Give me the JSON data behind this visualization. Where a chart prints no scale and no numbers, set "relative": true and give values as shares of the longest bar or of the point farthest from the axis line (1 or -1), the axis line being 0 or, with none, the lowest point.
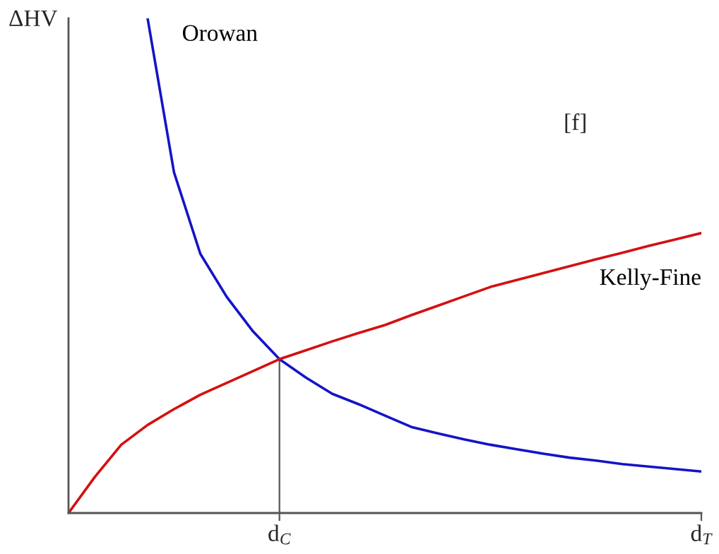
{
  "chart_data": {
    "type": "line",
    "relative": true,
    "ylabel": "ΔHV",
    "line_style": "solid",
    "tick_labels": "x",
    "categories": [
      null,
      null,
      null,
      null,
      null,
      null,
      null,
      null,
      "d$_{C}$",
      null,
      null,
      null,
      null,
      null,
      null,
      null,
      null,
      null,
      null,
      null,
      null,
      null,
      null,
      null,
      "d$_{T}$"
    ],
    "series": [
      {
        "name": "Orowan",
        "color": "#1414c8",
        "values": [
          null,
          null,
          null,
          1.0,
          0.689,
          0.524,
          0.437,
          0.367,
          0.311,
          0.274,
          0.241,
          0.22,
          0.197,
          0.174,
          0.161,
          0.149,
          0.138,
          0.129,
          0.12,
          0.112,
          0.106,
          0.099,
          0.094,
          0.089,
          0.084
        ]
      },
      {
        "name": "Kelly-Fine",
        "color": "#d41010",
        "values": [
          0,
          0.073,
          0.138,
          0.178,
          0.21,
          0.239,
          0.263,
          0.287,
          0.311,
          0.329,
          0.347,
          0.364,
          0.38,
          0.4,
          0.419,
          0.438,
          0.457,
          0.471,
          0.485,
          0.499,
          0.513,
          0.526,
          0.54,
          0.553,
          0.566
        ]
      }
    ],
    "ref_lines": [
      {
        "axis": "x",
        "value": "d$_{C}$",
        "color": "#555555"
      }
    ],
    "annotations": [
      "[f]"
    ]
  }
}
